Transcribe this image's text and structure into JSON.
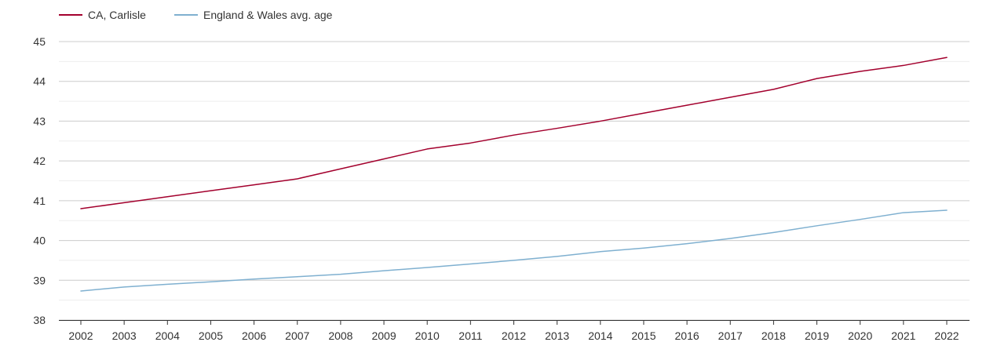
{
  "chart_data": {
    "type": "line",
    "title": "",
    "xlabel": "",
    "ylabel": "",
    "x": [
      "2002",
      "2003",
      "2004",
      "2005",
      "2006",
      "2007",
      "2008",
      "2009",
      "2010",
      "2011",
      "2012",
      "2013",
      "2014",
      "2015",
      "2016",
      "2017",
      "2018",
      "2019",
      "2020",
      "2021",
      "2022"
    ],
    "ylim": [
      38,
      45
    ],
    "y_ticks": [
      "38",
      "39",
      "40",
      "41",
      "42",
      "43",
      "44",
      "45"
    ],
    "grid": true,
    "legend_position": "top-left",
    "series": [
      {
        "name": "CA, Carlisle",
        "color": "#a3002d",
        "values": [
          40.8,
          40.95,
          41.1,
          41.25,
          41.4,
          41.55,
          41.8,
          42.05,
          42.3,
          42.45,
          42.65,
          42.82,
          43.0,
          43.2,
          43.4,
          43.6,
          43.8,
          44.07,
          44.25,
          44.4,
          44.6
        ]
      },
      {
        "name": "England & Wales avg. age",
        "color": "#7fb0d0",
        "values": [
          38.73,
          38.83,
          38.9,
          38.96,
          39.03,
          39.09,
          39.15,
          39.24,
          39.32,
          39.41,
          39.5,
          39.6,
          39.72,
          39.81,
          39.92,
          40.05,
          40.2,
          40.37,
          40.53,
          40.7,
          40.76
        ]
      }
    ]
  }
}
